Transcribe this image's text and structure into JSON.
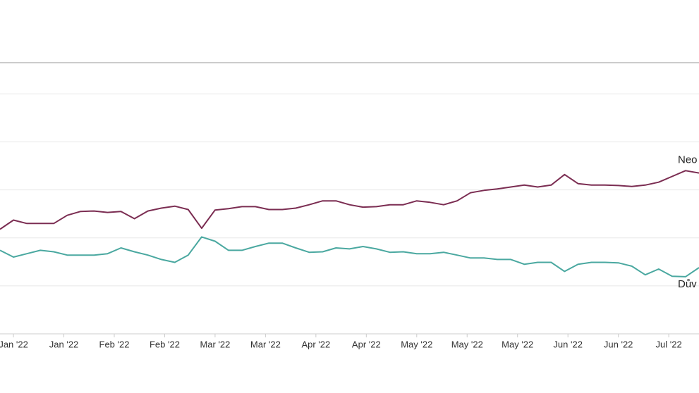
{
  "chart_data": {
    "type": "line",
    "x": [
      0,
      4,
      8,
      12,
      16,
      20,
      24,
      28,
      32,
      36,
      40,
      44,
      48,
      52,
      56,
      60,
      64,
      68,
      72,
      76,
      80,
      84,
      88,
      92,
      96,
      100,
      104,
      108,
      112,
      116,
      120,
      124,
      128,
      132,
      136,
      140,
      144,
      148,
      152,
      156,
      160,
      164,
      168,
      172,
      176,
      180,
      184,
      188,
      192,
      196,
      200,
      204,
      208
    ],
    "series": [
      {
        "name": "Neo",
        "color": "#7b2d52",
        "values": [
          21.8,
          23.7,
          23,
          23,
          23,
          24.7,
          25.5,
          25.6,
          25.3,
          25.5,
          24,
          25.6,
          26.2,
          26.6,
          25.9,
          22,
          25.8,
          26.1,
          26.5,
          26.5,
          25.9,
          25.9,
          26.2,
          26.9,
          27.7,
          27.7,
          26.9,
          26.4,
          26.5,
          26.9,
          26.9,
          27.7,
          27.4,
          26.9,
          27.7,
          29.4,
          29.9,
          30.2,
          30.6,
          31,
          30.6,
          31,
          33.2,
          31.3,
          31,
          31,
          30.9,
          30.7,
          31,
          31.6,
          32.8,
          34,
          33.5
        ]
      },
      {
        "name": "Dův",
        "color": "#4aa8a0",
        "values": [
          17.4,
          16,
          16.7,
          17.4,
          17.1,
          16.4,
          16.4,
          16.4,
          16.7,
          17.9,
          17.1,
          16.4,
          15.5,
          14.9,
          16.4,
          20.2,
          19.3,
          17.4,
          17.4,
          18.2,
          18.9,
          18.9,
          17.9,
          17,
          17.1,
          17.9,
          17.7,
          18.2,
          17.7,
          17,
          17.1,
          16.7,
          16.7,
          17,
          16.4,
          15.8,
          15.8,
          15.5,
          15.5,
          14.5,
          14.9,
          14.9,
          13,
          14.5,
          14.9,
          14.9,
          14.8,
          14.1,
          12.3,
          13.5,
          12,
          11.9,
          13.8
        ]
      }
    ],
    "xlim": [
      0,
      208
    ],
    "xticks": [
      {
        "value": 4,
        "label": "Jan '22"
      },
      {
        "value": 19,
        "label": "Jan '22"
      },
      {
        "value": 34,
        "label": "Feb '22"
      },
      {
        "value": 49,
        "label": "Feb '22"
      },
      {
        "value": 64,
        "label": "Mar '22"
      },
      {
        "value": 79,
        "label": "Mar '22"
      },
      {
        "value": 94,
        "label": "Apr '22"
      },
      {
        "value": 109,
        "label": "Apr '22"
      },
      {
        "value": 124,
        "label": "May '22"
      },
      {
        "value": 139,
        "label": "May '22"
      },
      {
        "value": 154,
        "label": "May '22"
      },
      {
        "value": 169,
        "label": "Jun '22"
      },
      {
        "value": 184,
        "label": "Jun '22"
      },
      {
        "value": 199,
        "label": "Jul '22"
      }
    ],
    "ylim": [
      0,
      56.5
    ],
    "yticks": [
      0,
      10,
      20,
      30,
      40,
      50
    ],
    "grid": true
  }
}
